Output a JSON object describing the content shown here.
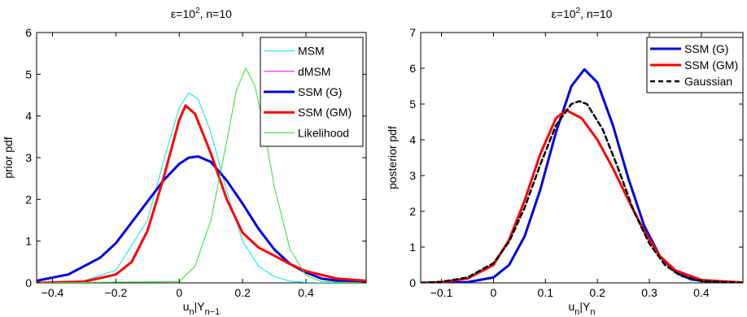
{
  "chart_data": [
    {
      "type": "line",
      "title": "ε=10², n=10",
      "title_main": "ε=10",
      "title_sup": "2",
      "title_rest": ", n=10",
      "xlabel": "u_n|Y_{n−1}",
      "xlabel_main": "u",
      "xlabel_sub1": "n",
      "xlabel_mid": "|Y",
      "xlabel_sub2": "n−1",
      "ylabel": "prior pdf",
      "xlim": [
        -0.45,
        0.59
      ],
      "ylim": [
        0,
        6
      ],
      "xticks": [
        -0.4,
        -0.2,
        0,
        0.2,
        0.4
      ],
      "xtick_labels": [
        "−0.4",
        "−0.2",
        "0",
        "0.2",
        "0.4"
      ],
      "yticks": [
        0,
        1,
        2,
        3,
        4,
        5,
        6
      ],
      "ytick_labels": [
        "0",
        "1",
        "2",
        "3",
        "4",
        "5",
        "6"
      ],
      "grid": false,
      "legend_position": "top-right",
      "series": [
        {
          "name": "MSM",
          "color": "#00e5e5",
          "dash": "",
          "width": 1,
          "x": [
            -0.45,
            -0.3,
            -0.2,
            -0.1,
            -0.05,
            0,
            0.03,
            0.06,
            0.1,
            0.15,
            0.2,
            0.25,
            0.3,
            0.35,
            0.4,
            0.45,
            0.59
          ],
          "y": [
            0,
            0.05,
            0.3,
            1.5,
            2.9,
            4.2,
            4.55,
            4.4,
            3.6,
            2.2,
            1.0,
            0.4,
            0.15,
            0.04,
            0.01,
            0,
            0
          ]
        },
        {
          "name": "dMSM",
          "color": "#ff00ff",
          "dash": "",
          "width": 1,
          "x": [
            -0.45,
            -0.3,
            -0.2,
            -0.15,
            -0.1,
            -0.05,
            0,
            0.02,
            0.05,
            0.1,
            0.15,
            0.2,
            0.25,
            0.3,
            0.35,
            0.4,
            0.5,
            0.59
          ],
          "y": [
            0,
            0.03,
            0.2,
            0.5,
            1.25,
            2.5,
            3.9,
            4.25,
            4.05,
            3.1,
            2.0,
            1.2,
            0.85,
            0.65,
            0.45,
            0.28,
            0.1,
            0.05
          ]
        },
        {
          "name": "SSM (G)",
          "color": "#0000e0",
          "dash": "",
          "width": 3,
          "x": [
            -0.45,
            -0.35,
            -0.25,
            -0.2,
            -0.15,
            -0.1,
            -0.05,
            0,
            0.03,
            0.06,
            0.1,
            0.15,
            0.2,
            0.25,
            0.3,
            0.35,
            0.4,
            0.45,
            0.5,
            0.59
          ],
          "y": [
            0.05,
            0.2,
            0.6,
            0.95,
            1.45,
            1.95,
            2.45,
            2.85,
            3.0,
            3.03,
            2.9,
            2.45,
            1.9,
            1.3,
            0.8,
            0.45,
            0.25,
            0.1,
            0.05,
            0.01
          ]
        },
        {
          "name": "SSM (GM)",
          "color": "#ff0000",
          "dash": "",
          "width": 3,
          "x": [
            -0.45,
            -0.3,
            -0.2,
            -0.15,
            -0.1,
            -0.05,
            0,
            0.02,
            0.05,
            0.1,
            0.15,
            0.2,
            0.25,
            0.3,
            0.35,
            0.4,
            0.5,
            0.59
          ],
          "y": [
            0,
            0.03,
            0.2,
            0.5,
            1.25,
            2.5,
            3.9,
            4.25,
            4.05,
            3.1,
            2.0,
            1.2,
            0.85,
            0.65,
            0.45,
            0.28,
            0.1,
            0.05
          ]
        },
        {
          "name": "Likelihood",
          "color": "#33dd33",
          "dash": "",
          "width": 1,
          "x": [
            -0.45,
            0,
            0.05,
            0.1,
            0.15,
            0.18,
            0.21,
            0.24,
            0.27,
            0.3,
            0.35,
            0.4,
            0.45,
            0.59
          ],
          "y": [
            0,
            0.03,
            0.4,
            1.5,
            3.4,
            4.6,
            5.15,
            4.7,
            3.6,
            2.3,
            0.8,
            0.18,
            0.03,
            0
          ]
        }
      ]
    },
    {
      "type": "line",
      "title": "ε=10², n=10",
      "title_main": "ε=10",
      "title_sup": "2",
      "title_rest": ", n=10",
      "xlabel": "u_n|Y_n",
      "xlabel_main": "u",
      "xlabel_sub1": "n",
      "xlabel_mid": "|Y",
      "xlabel_sub2": "n",
      "ylabel": "posterior pdf",
      "xlim": [
        -0.14,
        0.48
      ],
      "ylim": [
        0,
        7
      ],
      "xticks": [
        -0.1,
        0,
        0.1,
        0.2,
        0.3,
        0.4
      ],
      "xtick_labels": [
        "−0.1",
        "0",
        "0.1",
        "0.2",
        "0.3",
        "0.4"
      ],
      "yticks": [
        0,
        1,
        2,
        3,
        4,
        5,
        6,
        7
      ],
      "ytick_labels": [
        "0",
        "1",
        "2",
        "3",
        "4",
        "5",
        "6",
        "7"
      ],
      "grid": false,
      "legend_position": "top-right",
      "series": [
        {
          "name": "SSM (G)",
          "color": "#0000e0",
          "dash": "",
          "width": 3,
          "x": [
            -0.14,
            -0.05,
            0,
            0.03,
            0.06,
            0.09,
            0.12,
            0.15,
            0.175,
            0.2,
            0.23,
            0.26,
            0.29,
            0.32,
            0.35,
            0.38,
            0.42,
            0.48
          ],
          "y": [
            0,
            0.02,
            0.15,
            0.5,
            1.3,
            2.6,
            4.2,
            5.5,
            5.97,
            5.6,
            4.4,
            2.9,
            1.6,
            0.75,
            0.3,
            0.1,
            0.02,
            0
          ]
        },
        {
          "name": "SSM (GM)",
          "color": "#ff0000",
          "dash": "",
          "width": 3,
          "x": [
            -0.14,
            -0.1,
            -0.05,
            0,
            0.03,
            0.06,
            0.09,
            0.12,
            0.14,
            0.17,
            0.2,
            0.23,
            0.26,
            0.29,
            0.32,
            0.35,
            0.4,
            0.48
          ],
          "y": [
            0,
            0.02,
            0.12,
            0.5,
            1.2,
            2.3,
            3.6,
            4.6,
            4.83,
            4.6,
            4.0,
            3.2,
            2.3,
            1.45,
            0.75,
            0.35,
            0.08,
            0.01
          ]
        },
        {
          "name": "Gaussian",
          "color": "#000000",
          "dash": "6,4",
          "width": 2.5,
          "x": [
            -0.14,
            -0.1,
            -0.05,
            0,
            0.03,
            0.06,
            0.09,
            0.12,
            0.15,
            0.165,
            0.18,
            0.21,
            0.24,
            0.27,
            0.3,
            0.33,
            0.36,
            0.4,
            0.48
          ],
          "y": [
            0,
            0.03,
            0.15,
            0.55,
            1.15,
            2.1,
            3.3,
            4.4,
            5.0,
            5.08,
            5.0,
            4.3,
            3.2,
            2.0,
            1.1,
            0.5,
            0.2,
            0.05,
            0
          ]
        }
      ]
    }
  ]
}
